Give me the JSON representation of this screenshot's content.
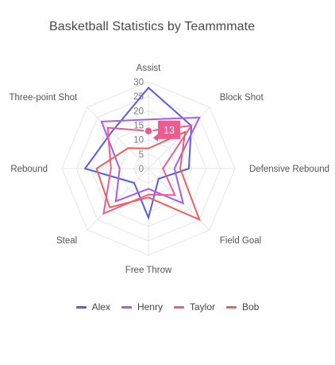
{
  "chart_data": {
    "type": "radar",
    "title": "Basketball Statistics by Teammmate",
    "axes": [
      "Assist",
      "Block Shot",
      "Defensive Rebound",
      "Field Goal",
      "Free Throw",
      "Steal",
      "Rebound",
      "Three-point Shot"
    ],
    "rlim": [
      0,
      30
    ],
    "ticks": [
      "0",
      "5",
      "10",
      "15",
      "20",
      "25",
      "30"
    ],
    "grid": true,
    "legend_position": "bottom",
    "series": [
      {
        "name": "Alex",
        "color": "#5b5ce6",
        "values": [
          28,
          21,
          14,
          5,
          17,
          7,
          22,
          18
        ]
      },
      {
        "name": "Henry",
        "color": "#a35ef2",
        "values": [
          17,
          25,
          9,
          17,
          7,
          16,
          10,
          23
        ]
      },
      {
        "name": "Taylor",
        "color": "#ee5b8f",
        "values": [
          13,
          21,
          5,
          13,
          9,
          22,
          13,
          20
        ]
      },
      {
        "name": "Bob",
        "color": "#f05d5d",
        "values": [
          7,
          18,
          11,
          25,
          10,
          19,
          18,
          10
        ]
      }
    ],
    "tooltip": {
      "series": "Taylor",
      "axis": "Assist",
      "value": "13",
      "color": "#ee5b8f"
    }
  }
}
